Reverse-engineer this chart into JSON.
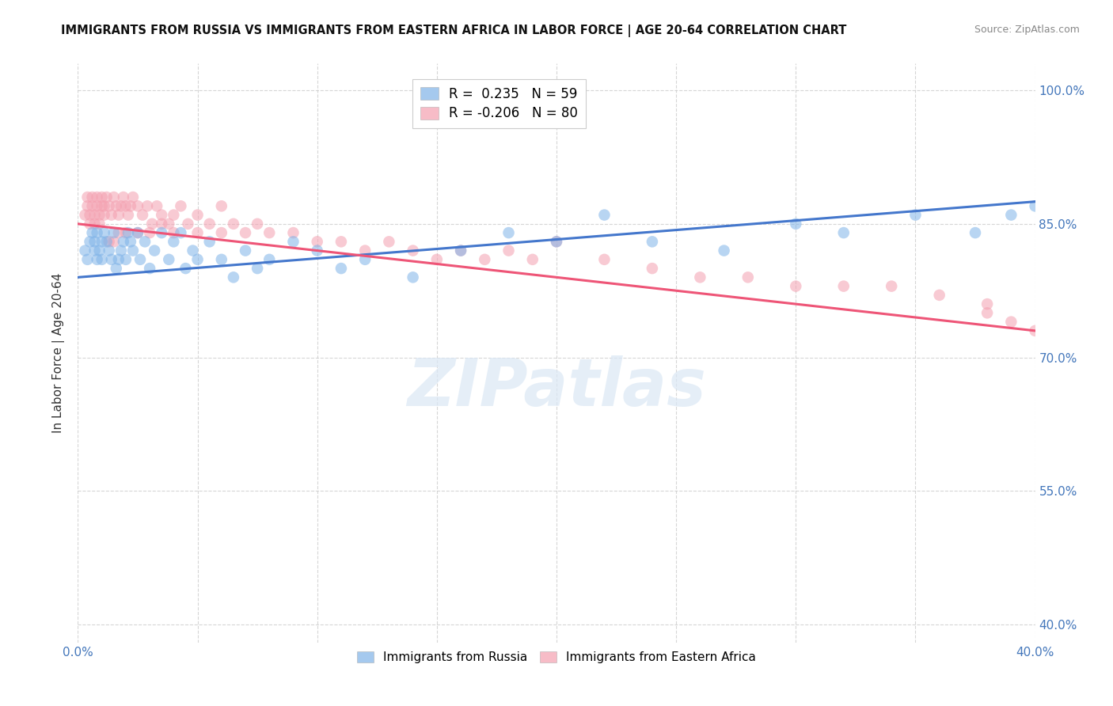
{
  "title": "IMMIGRANTS FROM RUSSIA VS IMMIGRANTS FROM EASTERN AFRICA IN LABOR FORCE | AGE 20-64 CORRELATION CHART",
  "source": "Source: ZipAtlas.com",
  "ylabel": "In Labor Force | Age 20-64",
  "xlim": [
    0.0,
    0.4
  ],
  "ylim": [
    0.38,
    1.03
  ],
  "x_ticks": [
    0.0,
    0.05,
    0.1,
    0.15,
    0.2,
    0.25,
    0.3,
    0.35,
    0.4
  ],
  "x_tick_labels": [
    "0.0%",
    "",
    "",
    "",
    "",
    "",
    "",
    "",
    "40.0%"
  ],
  "y_ticks": [
    0.4,
    0.55,
    0.7,
    0.85,
    1.0
  ],
  "y_tick_labels": [
    "40.0%",
    "55.0%",
    "70.0%",
    "85.0%",
    "100.0%"
  ],
  "grid_color": "#cccccc",
  "background_color": "#ffffff",
  "blue_color": "#7fb3e8",
  "pink_color": "#f4a0b0",
  "blue_line_color": "#4477cc",
  "pink_line_color": "#ee5577",
  "R_blue": 0.235,
  "N_blue": 59,
  "R_pink": -0.206,
  "N_pink": 80,
  "legend_label_blue": "Immigrants from Russia",
  "legend_label_pink": "Immigrants from Eastern Africa",
  "watermark_text": "ZIPatlas",
  "blue_line_x": [
    0.0,
    0.4
  ],
  "blue_line_y": [
    0.79,
    0.875
  ],
  "pink_line_x": [
    0.0,
    0.4
  ],
  "pink_line_y": [
    0.85,
    0.73
  ],
  "blue_x": [
    0.003,
    0.004,
    0.005,
    0.006,
    0.007,
    0.007,
    0.008,
    0.008,
    0.009,
    0.01,
    0.01,
    0.011,
    0.012,
    0.013,
    0.014,
    0.015,
    0.016,
    0.017,
    0.018,
    0.019,
    0.02,
    0.021,
    0.022,
    0.023,
    0.025,
    0.026,
    0.028,
    0.03,
    0.032,
    0.035,
    0.038,
    0.04,
    0.043,
    0.045,
    0.048,
    0.05,
    0.055,
    0.06,
    0.065,
    0.07,
    0.075,
    0.08,
    0.09,
    0.1,
    0.11,
    0.12,
    0.14,
    0.16,
    0.18,
    0.2,
    0.22,
    0.24,
    0.27,
    0.3,
    0.32,
    0.35,
    0.375,
    0.39,
    0.4
  ],
  "blue_y": [
    0.82,
    0.81,
    0.83,
    0.84,
    0.83,
    0.82,
    0.84,
    0.81,
    0.82,
    0.83,
    0.81,
    0.84,
    0.83,
    0.82,
    0.81,
    0.84,
    0.8,
    0.81,
    0.82,
    0.83,
    0.81,
    0.84,
    0.83,
    0.82,
    0.84,
    0.81,
    0.83,
    0.8,
    0.82,
    0.84,
    0.81,
    0.83,
    0.84,
    0.8,
    0.82,
    0.81,
    0.83,
    0.81,
    0.79,
    0.82,
    0.8,
    0.81,
    0.83,
    0.82,
    0.8,
    0.81,
    0.79,
    0.82,
    0.84,
    0.83,
    0.86,
    0.83,
    0.82,
    0.85,
    0.84,
    0.86,
    0.84,
    0.86,
    0.87
  ],
  "pink_x": [
    0.003,
    0.004,
    0.004,
    0.005,
    0.005,
    0.006,
    0.006,
    0.007,
    0.007,
    0.008,
    0.008,
    0.009,
    0.009,
    0.01,
    0.01,
    0.011,
    0.011,
    0.012,
    0.013,
    0.014,
    0.015,
    0.016,
    0.017,
    0.018,
    0.019,
    0.02,
    0.021,
    0.022,
    0.023,
    0.025,
    0.027,
    0.029,
    0.031,
    0.033,
    0.035,
    0.038,
    0.04,
    0.043,
    0.046,
    0.05,
    0.055,
    0.06,
    0.065,
    0.07,
    0.075,
    0.08,
    0.09,
    0.1,
    0.11,
    0.12,
    0.13,
    0.14,
    0.15,
    0.16,
    0.17,
    0.18,
    0.19,
    0.2,
    0.22,
    0.24,
    0.26,
    0.28,
    0.3,
    0.32,
    0.34,
    0.36,
    0.38,
    0.38,
    0.39,
    0.4,
    0.013,
    0.015,
    0.017,
    0.02,
    0.025,
    0.03,
    0.035,
    0.04,
    0.05,
    0.06
  ],
  "pink_y": [
    0.86,
    0.87,
    0.88,
    0.85,
    0.86,
    0.87,
    0.88,
    0.85,
    0.86,
    0.87,
    0.88,
    0.85,
    0.86,
    0.87,
    0.88,
    0.86,
    0.87,
    0.88,
    0.87,
    0.86,
    0.88,
    0.87,
    0.86,
    0.87,
    0.88,
    0.87,
    0.86,
    0.87,
    0.88,
    0.87,
    0.86,
    0.87,
    0.85,
    0.87,
    0.86,
    0.85,
    0.86,
    0.87,
    0.85,
    0.86,
    0.85,
    0.87,
    0.85,
    0.84,
    0.85,
    0.84,
    0.84,
    0.83,
    0.83,
    0.82,
    0.83,
    0.82,
    0.81,
    0.82,
    0.81,
    0.82,
    0.81,
    0.83,
    0.81,
    0.8,
    0.79,
    0.79,
    0.78,
    0.78,
    0.78,
    0.77,
    0.76,
    0.75,
    0.74,
    0.73,
    0.83,
    0.83,
    0.84,
    0.84,
    0.84,
    0.84,
    0.85,
    0.84,
    0.84,
    0.84
  ]
}
